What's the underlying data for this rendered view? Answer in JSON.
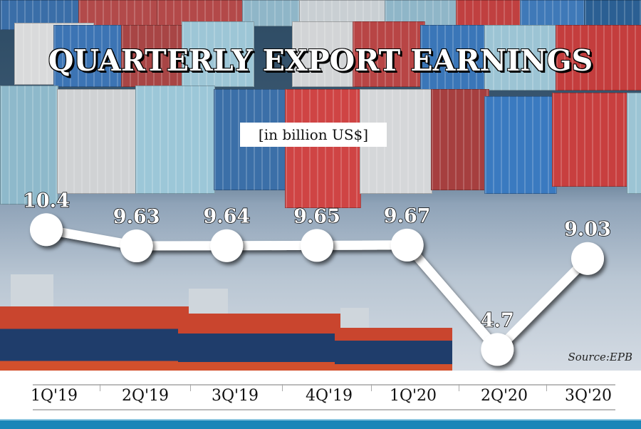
{
  "chart_data": {
    "type": "line",
    "title": "QUARTERLY EXPORT EARNINGS",
    "subtitle": "[in billion US$]",
    "categories": [
      "1Q'19",
      "2Q'19",
      "3Q'19",
      "4Q'19",
      "1Q'20",
      "2Q'20",
      "3Q'20"
    ],
    "series": [
      {
        "values": [
          10.4,
          9.63,
          9.64,
          9.65,
          9.67,
          4.7,
          9.03
        ]
      }
    ],
    "data_labels": [
      "10.4",
      "9.63",
      "9.64",
      "9.65",
      "9.67",
      "4.7",
      "9.03"
    ],
    "source": "Source:EPB",
    "grid": false,
    "colors": {
      "line": "#ffffff",
      "marker": "#ffffff",
      "label": "#ffffff",
      "bottom_bar": "#1b86b8"
    }
  }
}
